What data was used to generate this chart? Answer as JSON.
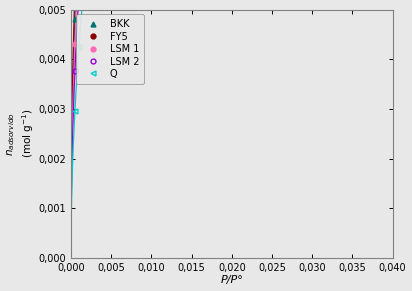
{
  "title": "",
  "xlabel": "P/P°",
  "xlim": [
    0.0,
    0.04
  ],
  "ylim": [
    0.0,
    0.005
  ],
  "xticks": [
    0.0,
    0.005,
    0.01,
    0.015,
    0.02,
    0.025,
    0.03,
    0.035,
    0.04
  ],
  "yticks": [
    0.0,
    0.001,
    0.002,
    0.003,
    0.004,
    0.005
  ],
  "series": [
    {
      "label": "BKK",
      "color": "#007070",
      "marker": "^",
      "filled": true,
      "a": 0.037,
      "b": 0.48
    },
    {
      "label": "FY5",
      "color": "#8B0000",
      "marker": "o",
      "filled": true,
      "a": 0.04,
      "b": 0.47
    },
    {
      "label": "LSM 1",
      "color": "#FF69B4",
      "marker": "o",
      "filled": true,
      "a": 0.0345,
      "b": 0.49
    },
    {
      "label": "LSM 2",
      "color": "#9400D3",
      "marker": "o",
      "filled": false,
      "a": 0.0315,
      "b": 0.5
    },
    {
      "label": "Q",
      "color": "#00CCCC",
      "marker": "<",
      "filled": false,
      "a": 0.027,
      "b": 0.52
    }
  ]
}
